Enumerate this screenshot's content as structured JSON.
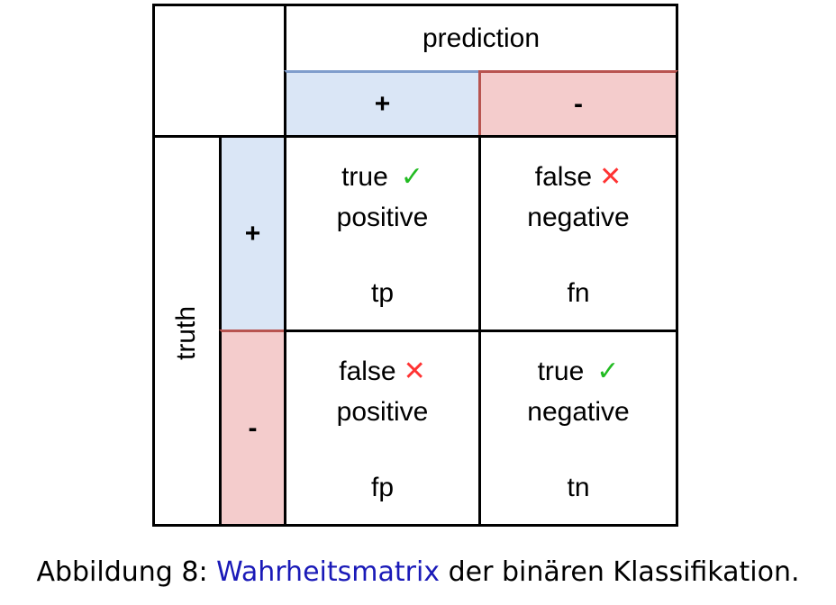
{
  "matrix": {
    "prediction_label": "prediction",
    "truth_label": "truth",
    "positive_sign": "+",
    "negative_sign": "-",
    "cells": {
      "tp": {
        "word1": "true",
        "word2": "positive",
        "abbr": "tp",
        "mark": "✓"
      },
      "fn": {
        "word1": "false",
        "word2": "negative",
        "abbr": "fn",
        "mark": "✕"
      },
      "fp": {
        "word1": "false",
        "word2": "positive",
        "abbr": "fp",
        "mark": "✕"
      },
      "tn": {
        "word1": "true",
        "word2": "negative",
        "abbr": "tn",
        "mark": "✓"
      }
    },
    "colors": {
      "positive_fill": "#dae6f6",
      "positive_border": "#7f9dcc",
      "negative_fill": "#f4cccc",
      "negative_border": "#b85450",
      "check": "#22bb22",
      "cross": "#ff3333"
    }
  },
  "caption": {
    "prefix": "Abbildung 8: ",
    "link_text": "Wahrheitsmatrix",
    "suffix": " der binären Klassifikation."
  }
}
